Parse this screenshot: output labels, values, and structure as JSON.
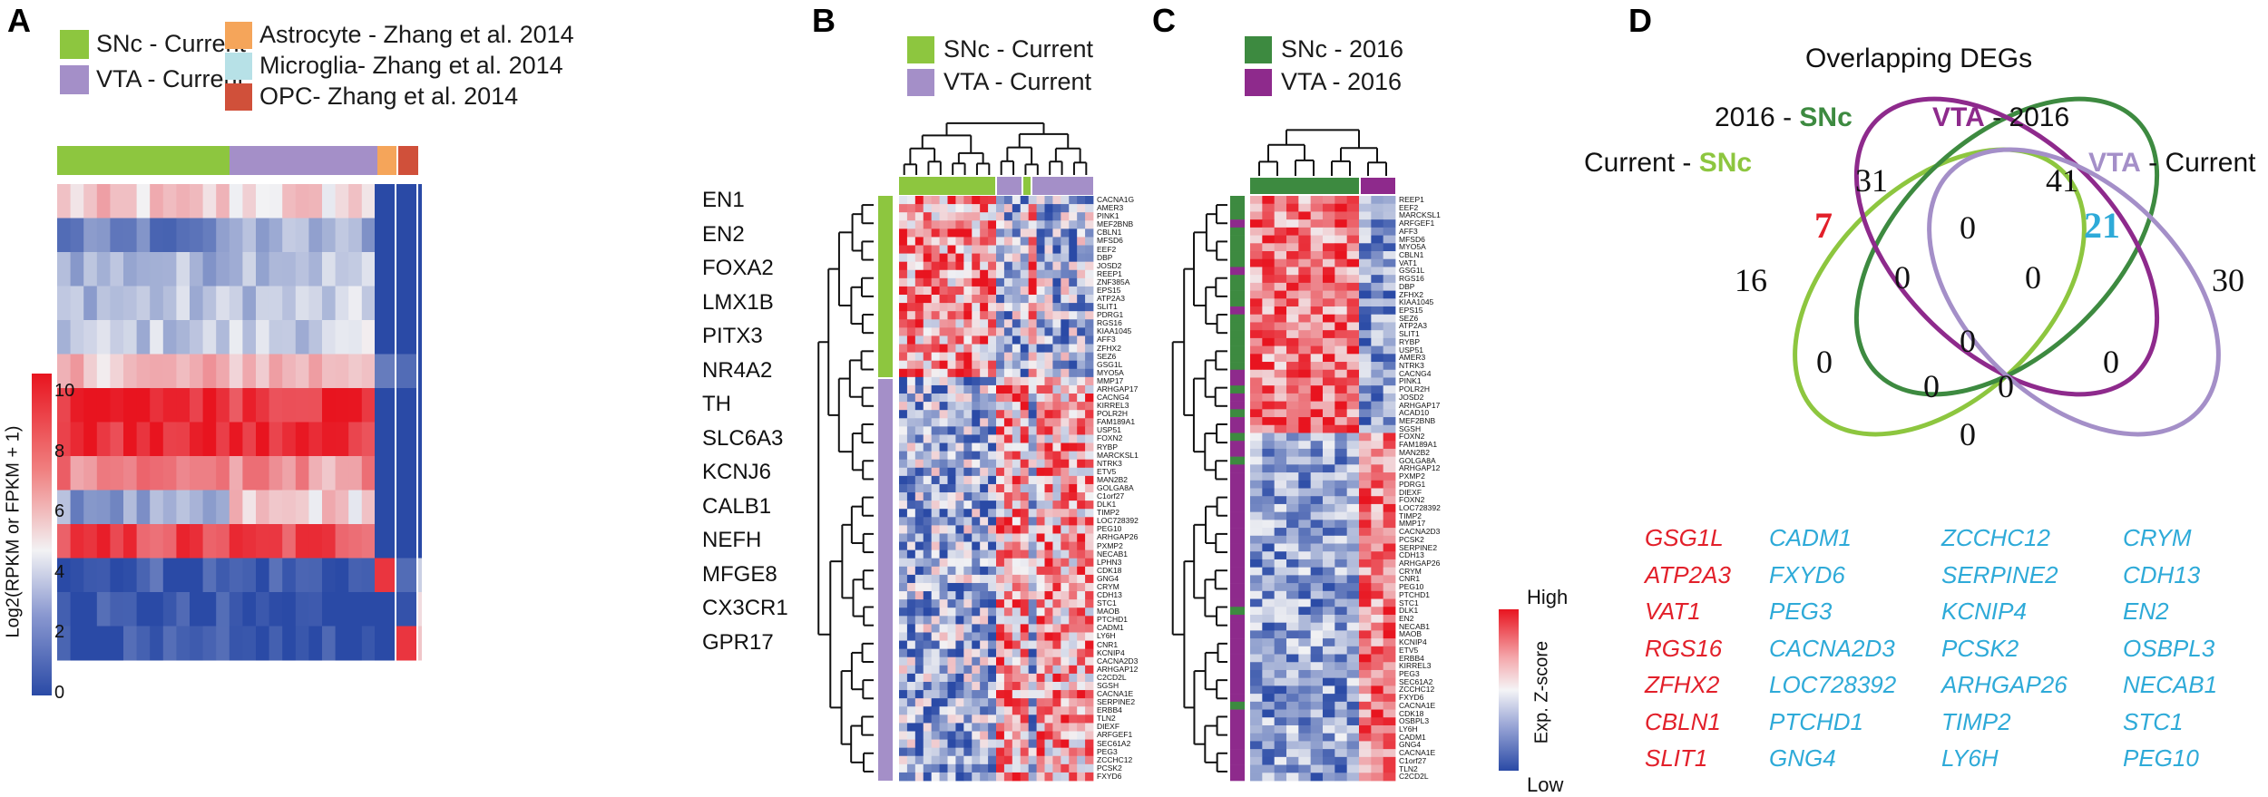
{
  "panels": {
    "a": "A",
    "b": "B",
    "c": "C",
    "d": "D"
  },
  "colors": {
    "snc_current": "#8dc63f",
    "vta_current": "#a48fc8",
    "astrocyte": "#f5a55a",
    "microglia": "#b7e1e7",
    "opc": "#d0503a",
    "snc_2016": "#3d8a40",
    "vta_2016": "#8e2a8c",
    "heat_high": "#e8141f",
    "heat_mid": "#f2f2f4",
    "heat_low": "#2a4aa6",
    "deg_red": "#e2202a",
    "deg_blue": "#2eaad8"
  },
  "panel_a": {
    "legend": {
      "snc": "SNc - Current",
      "vta": "VTA - Current",
      "astro": "Astrocyte - Zhang et al. 2014",
      "micro": "Microglia- Zhang et al. 2014",
      "opc": "OPC- Zhang et al. 2014"
    },
    "colorbar_title": "Log2(RPKM or FPKM + 1)",
    "colorbar_ticks": [
      "10",
      "8",
      "6",
      "4",
      "2",
      "0"
    ],
    "genes": [
      "EN1",
      "EN2",
      "FOXA2",
      "LMX1B",
      "PITX3",
      "NR4A2",
      "TH",
      "SLC6A3",
      "KCNJ6",
      "CALB1",
      "NEFH",
      "MFGE8",
      "CX3CR1",
      "GPR17"
    ]
  },
  "panel_b": {
    "legend": {
      "snc": "SNc - Current",
      "vta": "VTA - Current"
    },
    "genes": [
      "CACNA1G",
      "AMER3",
      "PINK1",
      "MEF2BNB",
      "CBLN1",
      "MFSD6",
      "EEF2",
      "DBP",
      "JOSD2",
      "REEP1",
      "ZNF385A",
      "EPS15",
      "ATP2A3",
      "SLIT1",
      "PDRG1",
      "RGS16",
      "KIAA1045",
      "AFF3",
      "ZFHX2",
      "SEZ6",
      "GSG1L",
      "MYO5A",
      "MMP17",
      "ARHGAP17",
      "CACNG4",
      "KIRREL3",
      "POLR2H",
      "FAM189A1",
      "USP51",
      "FOXN2",
      "RYBP",
      "MARCKSL1",
      "NTRK3",
      "ETV5",
      "MAN2B2",
      "GOLGA8A",
      "C1orf27",
      "DLK1",
      "TIMP2",
      "LOC728392",
      "PEG10",
      "ARHGAP26",
      "PXMP2",
      "NECAB1",
      "LPHN3",
      "CDK18",
      "GNG4",
      "CRYM",
      "CDH13",
      "STC1",
      "MAOB",
      "PTCHD1",
      "CADM1",
      "LY6H",
      "CNR1",
      "KCNIP4",
      "CACNA2D3",
      "ARHGAP12",
      "C2CD2L",
      "SGSH",
      "CACNA1E",
      "SERPINE2",
      "ERBB4",
      "TLN2",
      "DIEXF",
      "ARFGEF1",
      "SEC61A2",
      "PEG3",
      "ZCCHC12",
      "PCSK2",
      "FXYD6"
    ]
  },
  "panel_c": {
    "legend": {
      "snc": "SNc - 2016",
      "vta": "VTA - 2016"
    },
    "colorbar_title": "Exp. Z-score",
    "colorbar_high": "High",
    "colorbar_low": "Low",
    "genes": [
      "REEP1",
      "EEF2",
      "MARCKSL1",
      "ARFGEF1",
      "AFF3",
      "MFSD6",
      "MYO5A",
      "CBLN1",
      "VAT1",
      "GSG1L",
      "RGS16",
      "DBP",
      "ZFHX2",
      "KIAA1045",
      "EPS15",
      "SEZ6",
      "ATP2A3",
      "SLIT1",
      "RYBP",
      "USP51",
      "AMER3",
      "NTRK3",
      "CACNG4",
      "PINK1",
      "POLR2H",
      "JOSD2",
      "ARHGAP17",
      "ACAD10",
      "MEF2BNB",
      "SGSH",
      "FOXN2",
      "FAM189A1",
      "MAN2B2",
      "GOLGA8A",
      "ARHGAP12",
      "PXMP2",
      "PDRG1",
      "DIEXF",
      "FOXN2",
      "LOC728392",
      "TIMP2",
      "MMP17",
      "CACNA2D3",
      "PCSK2",
      "SERPINE2",
      "CDH13",
      "ARHGAP26",
      "CRYM",
      "CNR1",
      "PEG10",
      "PTCHD1",
      "STC1",
      "DLK1",
      "EN2",
      "NECAB1",
      "MAOB",
      "KCNIP4",
      "ETV5",
      "ERBB4",
      "KIRREL3",
      "PEG3",
      "SEC61A2",
      "ZCCHC12",
      "FXYD6",
      "CACNA1E",
      "CDK18",
      "OSBPL3",
      "LY6H",
      "CADM1",
      "GNG4",
      "CACNA1E",
      "C1orf27",
      "TLN2",
      "C2CD2L"
    ]
  },
  "panel_d": {
    "title": "Overlapping DEGs",
    "labels": {
      "current_snc_prefix": "Current - ",
      "current_snc_key": "SNc",
      "snc2016_prefix": "2016 - ",
      "snc2016_key": "SNc",
      "vta2016_key": "VTA",
      "vta2016_suffix": " - 2016",
      "vta_current_key": "VTA",
      "vta_current_suffix": " - Current"
    },
    "counts": {
      "only_current_snc": "16",
      "only_2016_snc": "31",
      "snc_overlap": "7",
      "only_2016_vta": "41",
      "vta_overlap": "21",
      "only_current_vta": "30",
      "c1": "0",
      "c2": "0",
      "c3": "0",
      "c4": "0",
      "c5": "0",
      "c6": "0",
      "c7": "0",
      "c8": "0",
      "c9": "0"
    },
    "deg_red": [
      "GSG1L",
      "ATP2A3",
      "VAT1",
      "RGS16",
      "ZFHX2",
      "CBLN1",
      "SLIT1"
    ],
    "deg_blue_col1": [
      "CADM1",
      "FXYD6",
      "PEG3",
      "CACNA2D3",
      "LOC728392",
      "PTCHD1",
      "GNG4"
    ],
    "deg_blue_col2": [
      "ZCCHC12",
      "SERPINE2",
      "KCNIP4",
      "PCSK2",
      "ARHGAP26",
      "TIMP2",
      "LY6H"
    ],
    "deg_blue_col3": [
      "CRYM",
      "CDH13",
      "EN2",
      "OSBPL3",
      "NECAB1",
      "STC1",
      "PEG10"
    ]
  }
}
